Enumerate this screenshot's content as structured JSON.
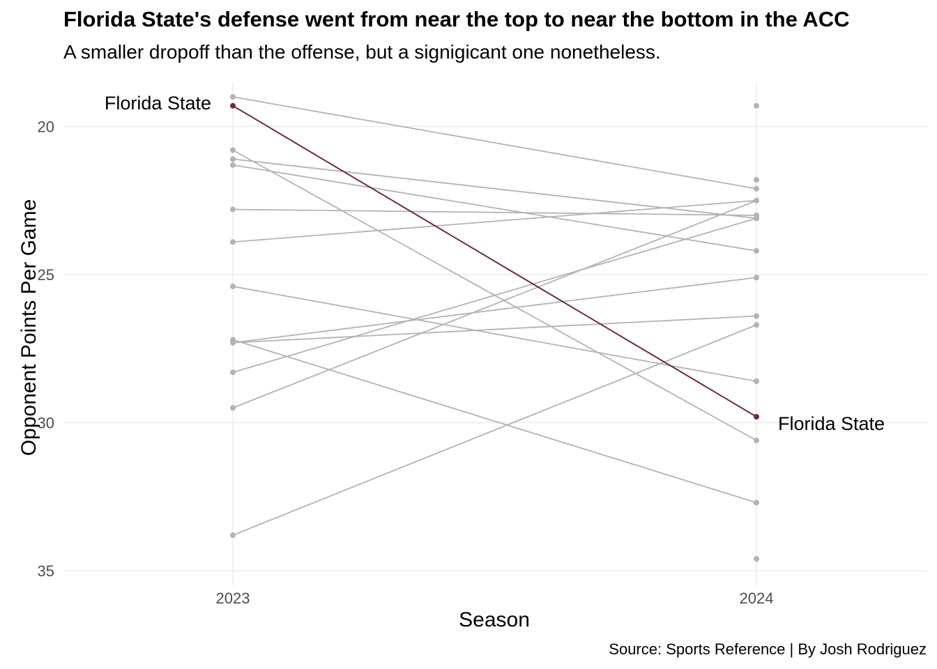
{
  "chart_data": {
    "type": "line",
    "title": "Florida State's defense went from near the top to near the bottom in the ACC",
    "subtitle": "A smaller dropoff than the offense, but a signigicant one nonetheless.",
    "xlabel": "Season",
    "ylabel": "Opponent Points Per Game",
    "caption": "Source: Sports Reference | By Josh Rodriguez",
    "categories": [
      "2023",
      "2024"
    ],
    "y_ticks": [
      20,
      25,
      30,
      35
    ],
    "ylim": [
      18.7,
      35.3
    ],
    "y_reversed": true,
    "grid": true,
    "highlight_team": "Florida State",
    "highlight_color": "#6b2c3e",
    "other_color": "#b3b3b3",
    "series": [
      {
        "name": "Florida State",
        "values": [
          19.3,
          29.8
        ],
        "highlight": true
      },
      {
        "values": [
          19.0,
          22.1
        ]
      },
      {
        "values": [
          20.8,
          30.6
        ]
      },
      {
        "values": [
          21.1,
          23.1
        ]
      },
      {
        "values": [
          21.3,
          24.2
        ]
      },
      {
        "values": [
          22.8,
          23.0
        ]
      },
      {
        "values": [
          23.9,
          22.5
        ]
      },
      {
        "values": [
          25.4,
          28.6
        ]
      },
      {
        "values": [
          27.2,
          32.7
        ]
      },
      {
        "values": [
          27.3,
          26.4
        ]
      },
      {
        "values": [
          27.3,
          25.1
        ]
      },
      {
        "values": [
          28.3,
          23.1
        ]
      },
      {
        "values": [
          29.5,
          22.5
        ]
      },
      {
        "values": [
          33.8,
          26.7
        ]
      }
    ],
    "unpaired_points": [
      {
        "x": "2024",
        "y": 19.3
      },
      {
        "x": "2024",
        "y": 21.8
      },
      {
        "x": "2024",
        "y": 34.6
      }
    ]
  }
}
